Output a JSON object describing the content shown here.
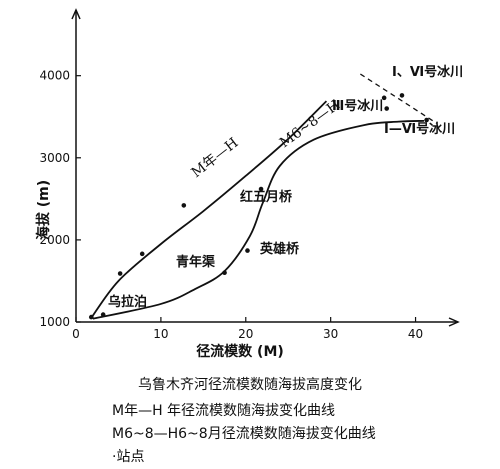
{
  "chart_data": {
    "type": "line",
    "xlabel": "径流模数 (M)",
    "ylabel": "海拔 (m)",
    "xlim": [
      0,
      45
    ],
    "ylim": [
      1000,
      4800
    ],
    "xticks": [
      0,
      10,
      20,
      30,
      40
    ],
    "yticks": [
      1000,
      2000,
      3000,
      4000
    ],
    "series": [
      {
        "name": "M年—H",
        "x": [
          1.8,
          5,
          10,
          15,
          20,
          25,
          29.5
        ],
        "y": [
          1050,
          1500,
          1950,
          2350,
          2780,
          3230,
          3690
        ]
      },
      {
        "name": "M6~8—H",
        "x": [
          2,
          10,
          14,
          17.5,
          20.5,
          22,
          24,
          28,
          34,
          38,
          41
        ],
        "y": [
          1040,
          1220,
          1400,
          1620,
          2050,
          2450,
          2900,
          3220,
          3400,
          3440,
          3450
        ]
      }
    ],
    "points": [
      {
        "x": 1.8,
        "y": 1060
      },
      {
        "x": 3.2,
        "y": 1090
      },
      {
        "x": 5.2,
        "y": 1590
      },
      {
        "x": 7.8,
        "y": 1830
      },
      {
        "x": 12.7,
        "y": 2420
      },
      {
        "x": 17.5,
        "y": 1600
      },
      {
        "x": 20.2,
        "y": 1870
      },
      {
        "x": 21.8,
        "y": 2620
      },
      {
        "x": 36.3,
        "y": 3730
      },
      {
        "x": 36.6,
        "y": 3600
      },
      {
        "x": 38.4,
        "y": 3760
      },
      {
        "x": 41.3,
        "y": 3460
      }
    ],
    "annotations": {
      "wulabo": "乌拉泊",
      "qingnianqu": "青年渠",
      "yingxiongqiao": "英雄桥",
      "hongwuyueqiao": "红五月桥",
      "glacier_3": "Ⅲ号冰川",
      "glacier_1_6_a": "Ⅰ、Ⅵ号冰川",
      "glacier_1_6_b": "Ⅰ—Ⅵ号冰川",
      "curve_annual": "M年—H",
      "curve_summer": "M6~8—H"
    },
    "grid": false
  },
  "caption": {
    "title": "乌鲁木齐河径流模数随海拔高度变化",
    "line1": "M年—H 年径流模数随海拔变化曲线",
    "line2": "M6~8—H6~8月径流模数随海拔变化曲线",
    "line3": "·站点"
  }
}
